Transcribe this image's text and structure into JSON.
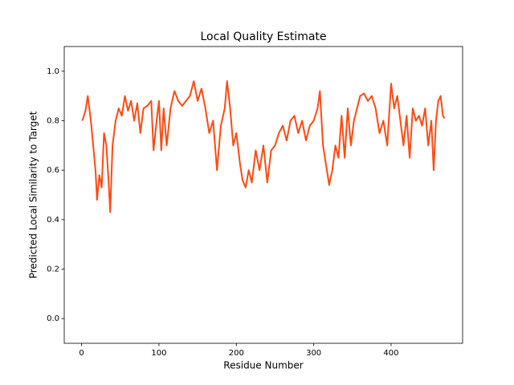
{
  "chart_data": {
    "type": "line",
    "title": "Local Quality Estimate",
    "x_label": "Residue Number",
    "y_label": "Predicted Local Similarity to Target",
    "color": "#ff4a12",
    "x": [
      1,
      5,
      8,
      12,
      15,
      18,
      20,
      23,
      26,
      29,
      32,
      35,
      37,
      40,
      44,
      48,
      52,
      56,
      60,
      64,
      68,
      72,
      76,
      80,
      85,
      90,
      93,
      97,
      100,
      103,
      106,
      110,
      115,
      120,
      125,
      130,
      135,
      140,
      145,
      150,
      155,
      160,
      165,
      170,
      175,
      180,
      185,
      188,
      192,
      196,
      200,
      205,
      208,
      212,
      216,
      220,
      225,
      230,
      235,
      240,
      245,
      250,
      255,
      260,
      265,
      270,
      275,
      280,
      285,
      290,
      295,
      300,
      305,
      308,
      312,
      316,
      320,
      324,
      328,
      332,
      336,
      340,
      344,
      348,
      352,
      356,
      360,
      365,
      370,
      375,
      380,
      385,
      390,
      395,
      400,
      404,
      408,
      412,
      416,
      420,
      424,
      428,
      432,
      436,
      440,
      444,
      448,
      452,
      455,
      458,
      461,
      464,
      467,
      469
    ],
    "values": [
      0.8,
      0.84,
      0.9,
      0.8,
      0.7,
      0.6,
      0.48,
      0.58,
      0.53,
      0.75,
      0.7,
      0.55,
      0.43,
      0.7,
      0.8,
      0.85,
      0.82,
      0.9,
      0.84,
      0.88,
      0.8,
      0.87,
      0.75,
      0.85,
      0.86,
      0.88,
      0.68,
      0.8,
      0.88,
      0.68,
      0.85,
      0.7,
      0.85,
      0.92,
      0.88,
      0.86,
      0.88,
      0.9,
      0.96,
      0.88,
      0.93,
      0.85,
      0.75,
      0.8,
      0.6,
      0.78,
      0.85,
      0.96,
      0.85,
      0.7,
      0.75,
      0.62,
      0.56,
      0.53,
      0.6,
      0.55,
      0.68,
      0.6,
      0.7,
      0.55,
      0.68,
      0.7,
      0.75,
      0.78,
      0.72,
      0.8,
      0.82,
      0.75,
      0.8,
      0.72,
      0.78,
      0.8,
      0.85,
      0.92,
      0.7,
      0.62,
      0.54,
      0.6,
      0.7,
      0.65,
      0.82,
      0.65,
      0.85,
      0.7,
      0.8,
      0.85,
      0.9,
      0.91,
      0.88,
      0.9,
      0.85,
      0.75,
      0.8,
      0.7,
      0.95,
      0.85,
      0.9,
      0.8,
      0.7,
      0.82,
      0.65,
      0.85,
      0.8,
      0.82,
      0.78,
      0.85,
      0.7,
      0.8,
      0.6,
      0.8,
      0.88,
      0.9,
      0.82,
      0.81
    ],
    "xlim": [
      -22.4,
      492.4
    ],
    "xticks": [
      0,
      100,
      200,
      300,
      400
    ],
    "ylim": [
      -0.1,
      1.1
    ],
    "yticks": [
      {
        "value": 0,
        "label": "0.0"
      },
      0.2,
      0.4,
      0.6,
      0.8,
      {
        "value": 1,
        "label": "1.0"
      }
    ],
    "grid": false
  }
}
